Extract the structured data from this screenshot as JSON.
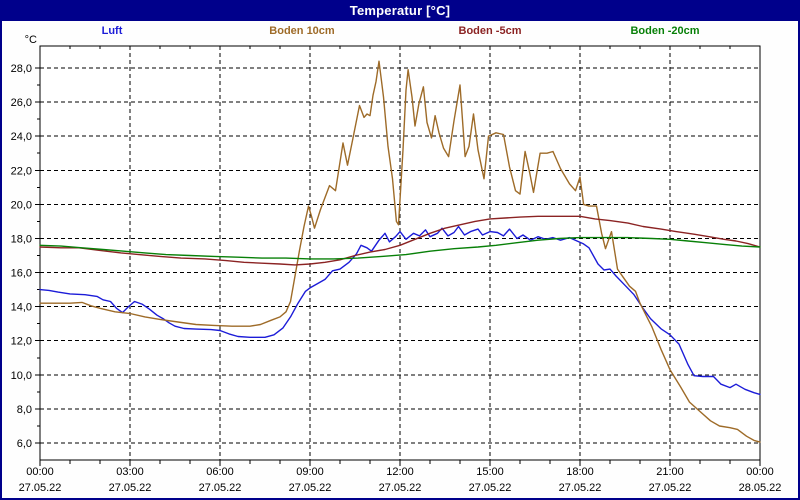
{
  "window": {
    "title": "Temperatur [°C]"
  },
  "colors": {
    "titlebar_bg": "#00008B",
    "titlebar_text": "#FFFFFF",
    "background": "#FEFEFE",
    "plot_border": "#000000",
    "grid": "#000000"
  },
  "chart_data": {
    "type": "line",
    "title": "Temperatur [°C]",
    "y_unit_label": "°C",
    "grid": "dashed",
    "legend_position": "top",
    "x_axis": {
      "start_hour": 0,
      "end_hour": 24,
      "major_tick_every_hours": 3,
      "minor_tick_every_hours": 1,
      "tick_labels": [
        {
          "time": "00:00",
          "date": "27.05.22"
        },
        {
          "time": "03:00",
          "date": "27.05.22"
        },
        {
          "time": "06:00",
          "date": "27.05.22"
        },
        {
          "time": "09:00",
          "date": "27.05.22"
        },
        {
          "time": "12:00",
          "date": "27.05.22"
        },
        {
          "time": "15:00",
          "date": "27.05.22"
        },
        {
          "time": "18:00",
          "date": "27.05.22"
        },
        {
          "time": "21:00",
          "date": "27.05.22"
        },
        {
          "time": "00:00",
          "date": "28.05.22"
        }
      ]
    },
    "y_axis": {
      "min": 5.0,
      "max": 29.3,
      "major_step": 2,
      "minor_step": 1,
      "tick_labels": [
        {
          "value": 28,
          "label": "28,0"
        },
        {
          "value": 26,
          "label": "26,0"
        },
        {
          "value": 24,
          "label": "24,0"
        },
        {
          "value": 22,
          "label": "22,0"
        },
        {
          "value": 20,
          "label": "20,0"
        },
        {
          "value": 18,
          "label": "18,0"
        },
        {
          "value": 16,
          "label": "16,0"
        },
        {
          "value": 14,
          "label": "14,0"
        },
        {
          "value": 12,
          "label": "12,0"
        },
        {
          "value": 10,
          "label": "10,0"
        },
        {
          "value": 8,
          "label": "8,0"
        },
        {
          "value": 6,
          "label": "6,0"
        }
      ]
    },
    "series": [
      {
        "name": "Luft",
        "color": "#1C1CD8",
        "points": [
          [
            0,
            15.0
          ],
          [
            0.3,
            14.95
          ],
          [
            0.6,
            14.85
          ],
          [
            1.0,
            14.75
          ],
          [
            1.5,
            14.7
          ],
          [
            1.9,
            14.6
          ],
          [
            2.1,
            14.4
          ],
          [
            2.35,
            14.3
          ],
          [
            2.55,
            13.9
          ],
          [
            2.75,
            13.65
          ],
          [
            2.95,
            14.0
          ],
          [
            3.15,
            14.3
          ],
          [
            3.4,
            14.15
          ],
          [
            3.65,
            13.85
          ],
          [
            3.9,
            13.5
          ],
          [
            4.1,
            13.3
          ],
          [
            4.3,
            13.05
          ],
          [
            4.5,
            12.85
          ],
          [
            4.8,
            12.72
          ],
          [
            5.2,
            12.68
          ],
          [
            5.7,
            12.65
          ],
          [
            6.0,
            12.6
          ],
          [
            6.3,
            12.4
          ],
          [
            6.6,
            12.25
          ],
          [
            7.0,
            12.2
          ],
          [
            7.5,
            12.2
          ],
          [
            7.8,
            12.35
          ],
          [
            8.1,
            12.75
          ],
          [
            8.35,
            13.4
          ],
          [
            8.6,
            14.2
          ],
          [
            8.85,
            14.9
          ],
          [
            9.0,
            15.1
          ],
          [
            9.2,
            15.3
          ],
          [
            9.5,
            15.6
          ],
          [
            9.75,
            16.1
          ],
          [
            10.0,
            16.2
          ],
          [
            10.3,
            16.6
          ],
          [
            10.55,
            17.1
          ],
          [
            10.7,
            17.6
          ],
          [
            10.9,
            17.45
          ],
          [
            11.05,
            17.25
          ],
          [
            11.3,
            17.9
          ],
          [
            11.5,
            18.3
          ],
          [
            11.65,
            17.8
          ],
          [
            11.85,
            18.1
          ],
          [
            12.0,
            18.4
          ],
          [
            12.2,
            17.95
          ],
          [
            12.45,
            18.3
          ],
          [
            12.65,
            18.15
          ],
          [
            12.85,
            18.5
          ],
          [
            13.0,
            18.1
          ],
          [
            13.25,
            18.3
          ],
          [
            13.4,
            18.6
          ],
          [
            13.6,
            18.15
          ],
          [
            13.8,
            18.35
          ],
          [
            13.95,
            18.7
          ],
          [
            14.15,
            18.2
          ],
          [
            14.35,
            18.4
          ],
          [
            14.6,
            18.55
          ],
          [
            14.75,
            18.2
          ],
          [
            15.0,
            18.4
          ],
          [
            15.25,
            18.35
          ],
          [
            15.45,
            18.15
          ],
          [
            15.65,
            18.55
          ],
          [
            15.9,
            18.0
          ],
          [
            16.1,
            18.2
          ],
          [
            16.35,
            17.9
          ],
          [
            16.6,
            18.1
          ],
          [
            16.85,
            17.95
          ],
          [
            17.1,
            18.05
          ],
          [
            17.35,
            17.9
          ],
          [
            17.65,
            18.05
          ],
          [
            17.9,
            17.85
          ],
          [
            18.1,
            17.7
          ],
          [
            18.3,
            17.45
          ],
          [
            18.6,
            16.5
          ],
          [
            18.8,
            16.15
          ],
          [
            19.0,
            16.2
          ],
          [
            19.2,
            15.8
          ],
          [
            19.5,
            15.25
          ],
          [
            19.8,
            14.7
          ],
          [
            20.1,
            13.9
          ],
          [
            20.35,
            13.3
          ],
          [
            20.7,
            12.7
          ],
          [
            21.0,
            12.35
          ],
          [
            21.3,
            11.8
          ],
          [
            21.6,
            10.6
          ],
          [
            21.8,
            9.95
          ],
          [
            22.1,
            9.9
          ],
          [
            22.45,
            9.9
          ],
          [
            22.7,
            9.45
          ],
          [
            23.0,
            9.25
          ],
          [
            23.2,
            9.45
          ],
          [
            23.5,
            9.15
          ],
          [
            23.8,
            8.95
          ],
          [
            24,
            8.85
          ]
        ]
      },
      {
        "name": "Boden 10cm",
        "color": "#9E6B28",
        "points": [
          [
            0,
            14.2
          ],
          [
            0.5,
            14.2
          ],
          [
            1.0,
            14.2
          ],
          [
            1.4,
            14.25
          ],
          [
            1.7,
            14.05
          ],
          [
            2.0,
            13.9
          ],
          [
            2.5,
            13.7
          ],
          [
            3.0,
            13.6
          ],
          [
            3.5,
            13.4
          ],
          [
            4.0,
            13.25
          ],
          [
            4.6,
            13.1
          ],
          [
            5.2,
            12.95
          ],
          [
            5.8,
            12.9
          ],
          [
            6.4,
            12.85
          ],
          [
            7.0,
            12.85
          ],
          [
            7.35,
            12.95
          ],
          [
            7.7,
            13.2
          ],
          [
            8.0,
            13.4
          ],
          [
            8.2,
            13.7
          ],
          [
            8.35,
            14.3
          ],
          [
            8.5,
            15.8
          ],
          [
            8.65,
            17.3
          ],
          [
            8.8,
            18.7
          ],
          [
            8.95,
            19.9
          ],
          [
            9.05,
            19.3
          ],
          [
            9.15,
            18.6
          ],
          [
            9.35,
            19.7
          ],
          [
            9.65,
            21.1
          ],
          [
            9.85,
            20.8
          ],
          [
            10.1,
            23.6
          ],
          [
            10.25,
            22.3
          ],
          [
            10.4,
            23.6
          ],
          [
            10.65,
            25.8
          ],
          [
            10.8,
            25.1
          ],
          [
            10.9,
            25.3
          ],
          [
            11.0,
            25.2
          ],
          [
            11.1,
            26.4
          ],
          [
            11.2,
            27.2
          ],
          [
            11.3,
            28.4
          ],
          [
            11.45,
            26.3
          ],
          [
            11.6,
            23.4
          ],
          [
            11.75,
            21.5
          ],
          [
            11.88,
            19.0
          ],
          [
            11.95,
            18.8
          ],
          [
            12.1,
            23.2
          ],
          [
            12.2,
            26.7
          ],
          [
            12.27,
            27.9
          ],
          [
            12.4,
            26.3
          ],
          [
            12.5,
            24.6
          ],
          [
            12.63,
            25.9
          ],
          [
            12.78,
            26.9
          ],
          [
            12.9,
            24.8
          ],
          [
            13.05,
            23.9
          ],
          [
            13.17,
            25.2
          ],
          [
            13.3,
            24.2
          ],
          [
            13.45,
            23.3
          ],
          [
            13.62,
            22.8
          ],
          [
            13.8,
            24.9
          ],
          [
            14.0,
            27.0
          ],
          [
            14.17,
            22.8
          ],
          [
            14.3,
            23.4
          ],
          [
            14.45,
            25.3
          ],
          [
            14.6,
            23.2
          ],
          [
            14.8,
            21.5
          ],
          [
            14.95,
            24.0
          ],
          [
            15.2,
            24.2
          ],
          [
            15.45,
            24.1
          ],
          [
            15.65,
            22.2
          ],
          [
            15.85,
            20.8
          ],
          [
            16.0,
            20.6
          ],
          [
            16.17,
            23.1
          ],
          [
            16.33,
            21.8
          ],
          [
            16.45,
            20.7
          ],
          [
            16.67,
            23.0
          ],
          [
            16.9,
            23.0
          ],
          [
            17.1,
            23.1
          ],
          [
            17.35,
            22.1
          ],
          [
            17.65,
            21.2
          ],
          [
            17.85,
            20.8
          ],
          [
            18.0,
            21.6
          ],
          [
            18.12,
            20.0
          ],
          [
            18.3,
            19.9
          ],
          [
            18.55,
            19.9
          ],
          [
            18.72,
            18.3
          ],
          [
            18.85,
            17.4
          ],
          [
            19.05,
            18.4
          ],
          [
            19.25,
            16.2
          ],
          [
            19.45,
            15.7
          ],
          [
            19.65,
            15.2
          ],
          [
            19.85,
            14.9
          ],
          [
            20.0,
            14.2
          ],
          [
            20.2,
            13.5
          ],
          [
            20.4,
            12.8
          ],
          [
            20.7,
            11.5
          ],
          [
            21.0,
            10.3
          ],
          [
            21.35,
            9.3
          ],
          [
            21.65,
            8.4
          ],
          [
            22.0,
            7.85
          ],
          [
            22.35,
            7.3
          ],
          [
            22.65,
            7.0
          ],
          [
            23.0,
            6.9
          ],
          [
            23.25,
            6.8
          ],
          [
            23.55,
            6.4
          ],
          [
            23.8,
            6.15
          ],
          [
            24,
            6.05
          ]
        ]
      },
      {
        "name": "Boden -5cm",
        "color": "#8B2323",
        "points": [
          [
            0,
            17.5
          ],
          [
            0.7,
            17.45
          ],
          [
            1.3,
            17.45
          ],
          [
            2.0,
            17.3
          ],
          [
            2.7,
            17.15
          ],
          [
            3.3,
            17.05
          ],
          [
            4.0,
            16.95
          ],
          [
            4.7,
            16.85
          ],
          [
            5.5,
            16.8
          ],
          [
            6.2,
            16.7
          ],
          [
            6.8,
            16.6
          ],
          [
            7.4,
            16.55
          ],
          [
            8.0,
            16.5
          ],
          [
            8.5,
            16.45
          ],
          [
            9.0,
            16.5
          ],
          [
            9.5,
            16.6
          ],
          [
            10.0,
            16.75
          ],
          [
            10.5,
            17.0
          ],
          [
            11.0,
            17.2
          ],
          [
            11.5,
            17.35
          ],
          [
            12.0,
            17.6
          ],
          [
            12.5,
            17.95
          ],
          [
            13.0,
            18.3
          ],
          [
            13.5,
            18.6
          ],
          [
            14.0,
            18.8
          ],
          [
            14.5,
            19.0
          ],
          [
            15.0,
            19.15
          ],
          [
            15.5,
            19.2
          ],
          [
            16.0,
            19.25
          ],
          [
            16.6,
            19.3
          ],
          [
            17.3,
            19.3
          ],
          [
            18.0,
            19.3
          ],
          [
            18.5,
            19.15
          ],
          [
            19.0,
            19.05
          ],
          [
            19.6,
            18.9
          ],
          [
            20.1,
            18.7
          ],
          [
            20.7,
            18.55
          ],
          [
            21.2,
            18.4
          ],
          [
            21.8,
            18.25
          ],
          [
            22.3,
            18.1
          ],
          [
            22.8,
            17.95
          ],
          [
            23.2,
            17.85
          ],
          [
            23.6,
            17.7
          ],
          [
            24,
            17.5
          ]
        ]
      },
      {
        "name": "Boden -20cm",
        "color": "#088008",
        "points": [
          [
            0,
            17.6
          ],
          [
            0.7,
            17.55
          ],
          [
            1.4,
            17.45
          ],
          [
            2.1,
            17.35
          ],
          [
            2.8,
            17.25
          ],
          [
            3.5,
            17.15
          ],
          [
            4.2,
            17.05
          ],
          [
            5.0,
            17.0
          ],
          [
            5.8,
            16.95
          ],
          [
            6.6,
            16.9
          ],
          [
            7.4,
            16.85
          ],
          [
            8.2,
            16.85
          ],
          [
            9.0,
            16.8
          ],
          [
            9.8,
            16.8
          ],
          [
            10.6,
            16.85
          ],
          [
            11.4,
            16.95
          ],
          [
            12.2,
            17.05
          ],
          [
            13.0,
            17.25
          ],
          [
            13.8,
            17.4
          ],
          [
            14.6,
            17.5
          ],
          [
            15.2,
            17.6
          ],
          [
            15.9,
            17.75
          ],
          [
            16.6,
            17.9
          ],
          [
            17.3,
            18.0
          ],
          [
            18.0,
            18.05
          ],
          [
            18.8,
            18.05
          ],
          [
            19.6,
            18.05
          ],
          [
            20.4,
            18.0
          ],
          [
            21.0,
            17.95
          ],
          [
            21.6,
            17.85
          ],
          [
            22.2,
            17.75
          ],
          [
            22.8,
            17.65
          ],
          [
            23.4,
            17.55
          ],
          [
            24,
            17.5
          ]
        ]
      }
    ]
  }
}
